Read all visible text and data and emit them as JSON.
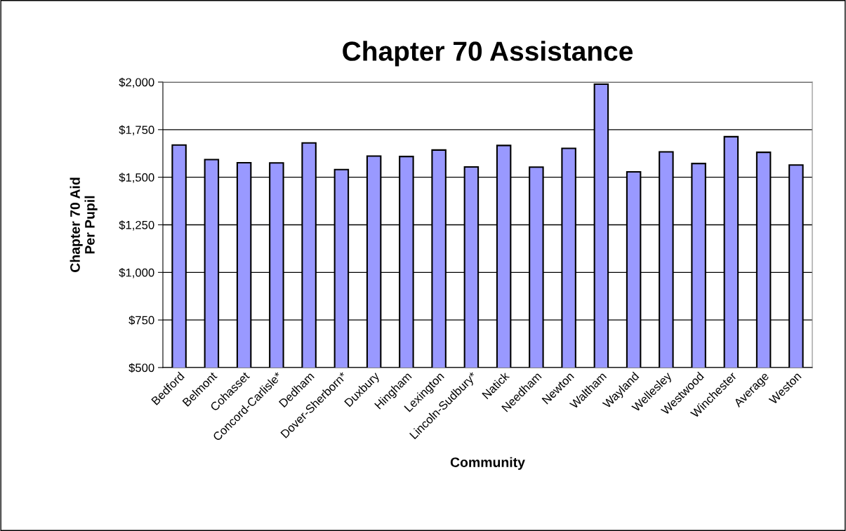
{
  "chart_data": {
    "type": "bar",
    "title": "Chapter 70 Assistance",
    "xlabel": "Community",
    "ylabel": "Chapter 70 Aid\nPer Pupil",
    "categories": [
      "Bedford",
      "Belmont",
      "Cohasset",
      "Concord-Carlisle*",
      "Dedham",
      "Dover-Sherborn*",
      "Duxbury",
      "Hingham",
      "Lexington",
      "Lincoln-Sudbury*",
      "Natick",
      "Needham",
      "Newton",
      "Waltham",
      "Wayland",
      "Wellesley",
      "Westwood",
      "Winchester",
      "Average",
      "Weston"
    ],
    "values": [
      1669,
      1593,
      1576,
      1575,
      1680,
      1540,
      1611,
      1609,
      1643,
      1554,
      1667,
      1553,
      1652,
      1989,
      1528,
      1633,
      1572,
      1713,
      1631,
      1564
    ],
    "color": "#9999ff",
    "ylim": [
      500,
      2000
    ],
    "yticks": [
      {
        "value": 500,
        "label": "$500"
      },
      {
        "value": 750,
        "label": "$750"
      },
      {
        "value": 1000,
        "label": "$1,000"
      },
      {
        "value": 1250,
        "label": "$1,250"
      },
      {
        "value": 1500,
        "label": "$1,500"
      },
      {
        "value": 1750,
        "label": "$1,750"
      },
      {
        "value": 2000,
        "label": "$2,000"
      }
    ],
    "grid": "y"
  }
}
